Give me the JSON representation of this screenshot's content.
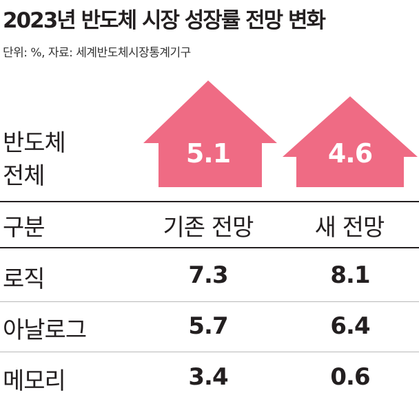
{
  "title": "2023년 반도체 시장 성장률 전망 변화",
  "source": "단위: %, 자료: 세계반도체시장통계기구",
  "total": {
    "label_line1": "반도체",
    "label_line2": "전체",
    "old_value": "5.1",
    "new_value": "4.6"
  },
  "table": {
    "header": {
      "category": "구분",
      "old": "기존 전망",
      "new": "새 전망"
    },
    "rows": [
      {
        "name": "로직",
        "old": "7.3",
        "new": "8.1"
      },
      {
        "name": "아날로그",
        "old": "5.7",
        "new": "6.4"
      },
      {
        "name": "메모리",
        "old": "3.4",
        "new": "0.6"
      }
    ]
  },
  "colors": {
    "house": "#ef6b84",
    "text": "#231f20",
    "divider": "#b8b8b8"
  },
  "chart_data": {
    "type": "table",
    "title": "2023년 반도체 시장 성장률 전망 변화",
    "unit": "%",
    "columns": [
      "기존 전망",
      "새 전망"
    ],
    "categories": [
      "반도체 전체",
      "로직",
      "아날로그",
      "메모리"
    ],
    "series": [
      {
        "name": "기존 전망",
        "values": [
          5.1,
          7.3,
          5.7,
          3.4
        ]
      },
      {
        "name": "새 전망",
        "values": [
          4.6,
          8.1,
          6.4,
          0.6
        ]
      }
    ]
  }
}
